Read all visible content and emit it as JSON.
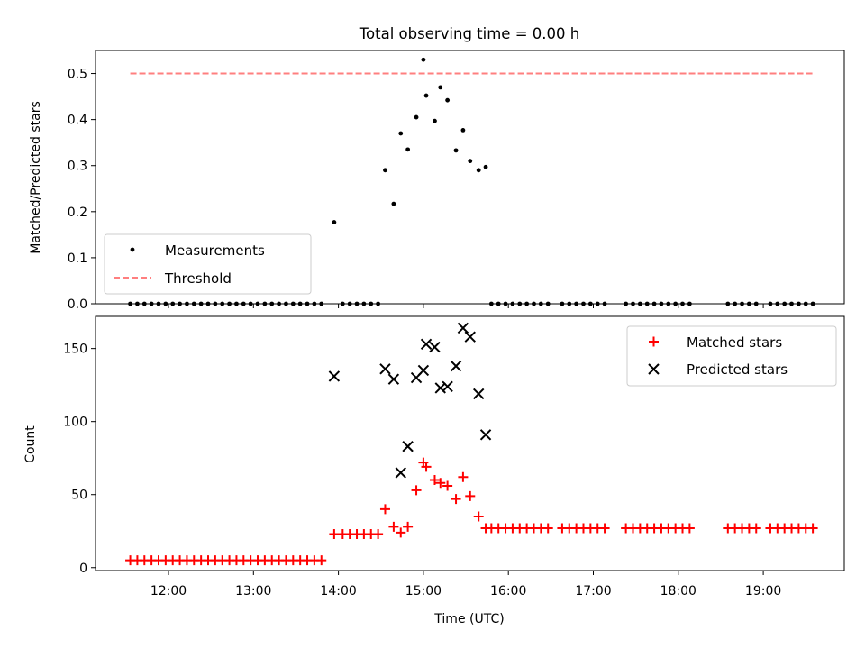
{
  "title": "Total observing time = 0.00 h",
  "xlabel": "Time (UTC)",
  "xticks": [
    "12:00",
    "13:00",
    "14:00",
    "15:00",
    "16:00",
    "17:00",
    "18:00",
    "19:00"
  ],
  "colors": {
    "measurement": "#000000",
    "threshold": "#ff7f7f",
    "matched": "#ff0000",
    "predicted": "#000000"
  },
  "chart_data": [
    {
      "type": "scatter",
      "ylabel": "Matched/Predicted stars",
      "ylim": [
        0,
        0.55
      ],
      "yticks": [
        "0.0",
        "0.1",
        "0.2",
        "0.3",
        "0.4",
        "0.5"
      ],
      "grid": false,
      "legend": "lower-left",
      "series": [
        {
          "name": "Measurements",
          "marker": "dot",
          "points": [
            [
              "11:33",
              0
            ],
            [
              "11:38",
              0
            ],
            [
              "11:43",
              0
            ],
            [
              "11:48",
              0
            ],
            [
              "11:53",
              0
            ],
            [
              "11:58",
              0
            ],
            [
              "12:03",
              0
            ],
            [
              "12:08",
              0
            ],
            [
              "12:13",
              0
            ],
            [
              "12:18",
              0
            ],
            [
              "12:23",
              0
            ],
            [
              "12:28",
              0
            ],
            [
              "12:33",
              0
            ],
            [
              "12:38",
              0
            ],
            [
              "12:43",
              0
            ],
            [
              "12:48",
              0
            ],
            [
              "12:53",
              0
            ],
            [
              "12:58",
              0
            ],
            [
              "13:03",
              0
            ],
            [
              "13:08",
              0
            ],
            [
              "13:13",
              0
            ],
            [
              "13:18",
              0
            ],
            [
              "13:23",
              0
            ],
            [
              "13:28",
              0
            ],
            [
              "13:33",
              0
            ],
            [
              "13:38",
              0
            ],
            [
              "13:43",
              0
            ],
            [
              "13:48",
              0
            ],
            [
              "13:57",
              0.177
            ],
            [
              "14:03",
              0
            ],
            [
              "14:08",
              0
            ],
            [
              "14:13",
              0
            ],
            [
              "14:18",
              0
            ],
            [
              "14:23",
              0
            ],
            [
              "14:28",
              0
            ],
            [
              "14:33",
              0.29
            ],
            [
              "14:39",
              0.217
            ],
            [
              "14:44",
              0.37
            ],
            [
              "14:49",
              0.335
            ],
            [
              "14:55",
              0.405
            ],
            [
              "15:00",
              0.53
            ],
            [
              "15:02",
              0.452
            ],
            [
              "15:08",
              0.397
            ],
            [
              "15:12",
              0.47
            ],
            [
              "15:17",
              0.442
            ],
            [
              "15:23",
              0.333
            ],
            [
              "15:28",
              0.377
            ],
            [
              "15:33",
              0.31
            ],
            [
              "15:39",
              0.29
            ],
            [
              "15:44",
              0.297
            ],
            [
              "15:48",
              0
            ],
            [
              "15:53",
              0
            ],
            [
              "15:58",
              0
            ],
            [
              "16:03",
              0
            ],
            [
              "16:08",
              0
            ],
            [
              "16:13",
              0
            ],
            [
              "16:18",
              0
            ],
            [
              "16:23",
              0
            ],
            [
              "16:28",
              0
            ],
            [
              "16:38",
              0
            ],
            [
              "16:43",
              0
            ],
            [
              "16:48",
              0
            ],
            [
              "16:53",
              0
            ],
            [
              "16:58",
              0
            ],
            [
              "17:03",
              0
            ],
            [
              "17:08",
              0
            ],
            [
              "17:23",
              0
            ],
            [
              "17:28",
              0
            ],
            [
              "17:33",
              0
            ],
            [
              "17:38",
              0
            ],
            [
              "17:43",
              0
            ],
            [
              "17:48",
              0
            ],
            [
              "17:53",
              0
            ],
            [
              "17:58",
              0
            ],
            [
              "18:03",
              0
            ],
            [
              "18:08",
              0
            ],
            [
              "18:35",
              0
            ],
            [
              "18:40",
              0
            ],
            [
              "18:45",
              0
            ],
            [
              "18:50",
              0
            ],
            [
              "18:55",
              0
            ],
            [
              "19:05",
              0
            ],
            [
              "19:10",
              0
            ],
            [
              "19:15",
              0
            ],
            [
              "19:20",
              0
            ],
            [
              "19:25",
              0
            ],
            [
              "19:30",
              0
            ],
            [
              "19:35",
              0
            ]
          ]
        },
        {
          "name": "Threshold",
          "marker": "dashed-line",
          "points": [
            [
              "11:33",
              0.5
            ],
            [
              "19:35",
              0.5
            ]
          ]
        }
      ]
    },
    {
      "type": "scatter",
      "ylabel": "Count",
      "ylim": [
        -2,
        172
      ],
      "yticks": [
        "0",
        "50",
        "100",
        "150"
      ],
      "grid": false,
      "legend": "upper-right",
      "series": [
        {
          "name": "Matched stars",
          "marker": "plus",
          "points": [
            [
              "11:33",
              5
            ],
            [
              "11:38",
              5
            ],
            [
              "11:43",
              5
            ],
            [
              "11:48",
              5
            ],
            [
              "11:53",
              5
            ],
            [
              "11:58",
              5
            ],
            [
              "12:03",
              5
            ],
            [
              "12:08",
              5
            ],
            [
              "12:13",
              5
            ],
            [
              "12:18",
              5
            ],
            [
              "12:23",
              5
            ],
            [
              "12:28",
              5
            ],
            [
              "12:33",
              5
            ],
            [
              "12:38",
              5
            ],
            [
              "12:43",
              5
            ],
            [
              "12:48",
              5
            ],
            [
              "12:53",
              5
            ],
            [
              "12:58",
              5
            ],
            [
              "13:03",
              5
            ],
            [
              "13:08",
              5
            ],
            [
              "13:13",
              5
            ],
            [
              "13:18",
              5
            ],
            [
              "13:23",
              5
            ],
            [
              "13:28",
              5
            ],
            [
              "13:33",
              5
            ],
            [
              "13:38",
              5
            ],
            [
              "13:43",
              5
            ],
            [
              "13:48",
              5
            ],
            [
              "13:57",
              23
            ],
            [
              "14:03",
              23
            ],
            [
              "14:08",
              23
            ],
            [
              "14:13",
              23
            ],
            [
              "14:18",
              23
            ],
            [
              "14:23",
              23
            ],
            [
              "14:28",
              23
            ],
            [
              "14:33",
              40
            ],
            [
              "14:39",
              28
            ],
            [
              "14:44",
              24
            ],
            [
              "14:49",
              28
            ],
            [
              "14:55",
              53
            ],
            [
              "15:00",
              72
            ],
            [
              "15:02",
              69
            ],
            [
              "15:08",
              60
            ],
            [
              "15:12",
              58
            ],
            [
              "15:17",
              56
            ],
            [
              "15:23",
              47
            ],
            [
              "15:28",
              62
            ],
            [
              "15:33",
              49
            ],
            [
              "15:39",
              35
            ],
            [
              "15:44",
              27
            ],
            [
              "15:48",
              27
            ],
            [
              "15:53",
              27
            ],
            [
              "15:58",
              27
            ],
            [
              "16:03",
              27
            ],
            [
              "16:08",
              27
            ],
            [
              "16:13",
              27
            ],
            [
              "16:18",
              27
            ],
            [
              "16:23",
              27
            ],
            [
              "16:28",
              27
            ],
            [
              "16:38",
              27
            ],
            [
              "16:43",
              27
            ],
            [
              "16:48",
              27
            ],
            [
              "16:53",
              27
            ],
            [
              "16:58",
              27
            ],
            [
              "17:03",
              27
            ],
            [
              "17:08",
              27
            ],
            [
              "17:23",
              27
            ],
            [
              "17:28",
              27
            ],
            [
              "17:33",
              27
            ],
            [
              "17:38",
              27
            ],
            [
              "17:43",
              27
            ],
            [
              "17:48",
              27
            ],
            [
              "17:53",
              27
            ],
            [
              "17:58",
              27
            ],
            [
              "18:03",
              27
            ],
            [
              "18:08",
              27
            ],
            [
              "18:35",
              27
            ],
            [
              "18:40",
              27
            ],
            [
              "18:45",
              27
            ],
            [
              "18:50",
              27
            ],
            [
              "18:55",
              27
            ],
            [
              "19:05",
              27
            ],
            [
              "19:10",
              27
            ],
            [
              "19:15",
              27
            ],
            [
              "19:20",
              27
            ],
            [
              "19:25",
              27
            ],
            [
              "19:30",
              27
            ],
            [
              "19:35",
              27
            ]
          ]
        },
        {
          "name": "Predicted stars",
          "marker": "x",
          "points": [
            [
              "13:57",
              131
            ],
            [
              "14:33",
              136
            ],
            [
              "14:39",
              129
            ],
            [
              "14:44",
              65
            ],
            [
              "14:49",
              83
            ],
            [
              "14:55",
              130
            ],
            [
              "15:00",
              135
            ],
            [
              "15:02",
              153
            ],
            [
              "15:08",
              151
            ],
            [
              "15:12",
              123
            ],
            [
              "15:17",
              124
            ],
            [
              "15:23",
              138
            ],
            [
              "15:28",
              164
            ],
            [
              "15:33",
              158
            ],
            [
              "15:39",
              119
            ],
            [
              "15:44",
              91
            ]
          ]
        }
      ]
    }
  ]
}
